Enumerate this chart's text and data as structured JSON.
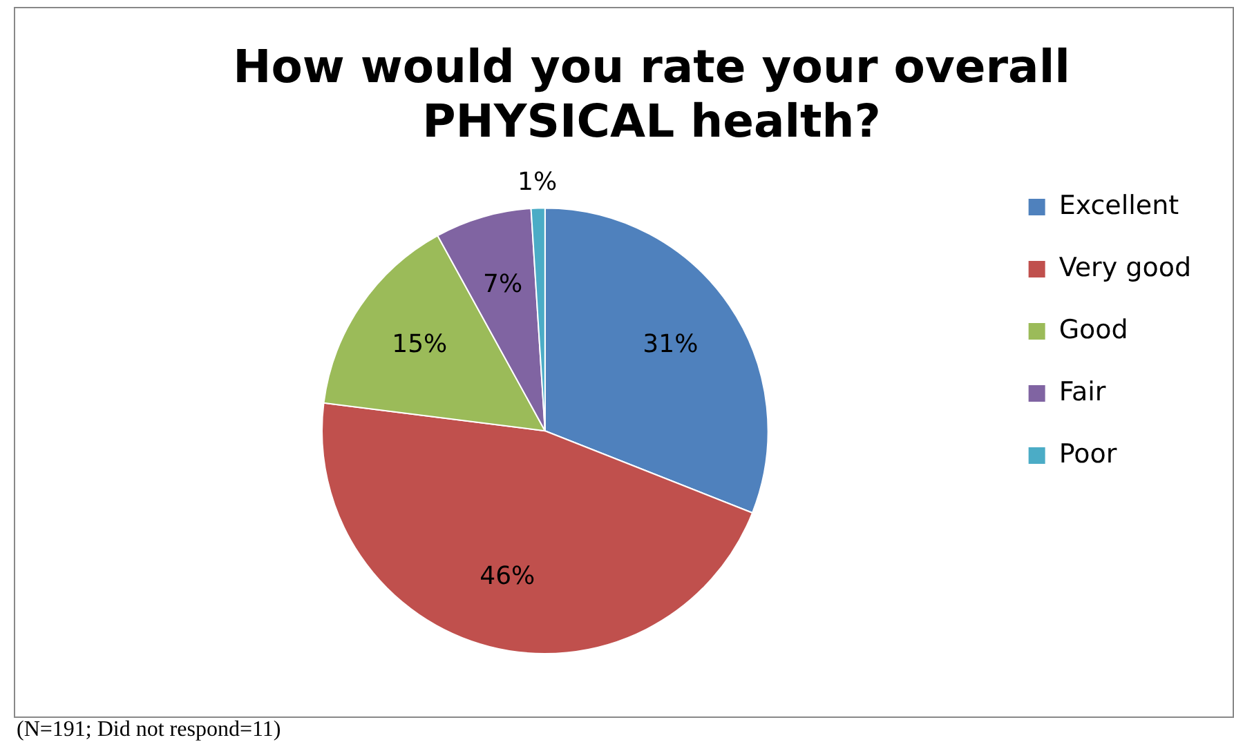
{
  "chart_data": {
    "type": "pie",
    "title": "How would you rate your overall PHYSICAL health?",
    "categories": [
      "Excellent",
      "Very good",
      "Good",
      "Fair",
      "Poor"
    ],
    "values": [
      31,
      46,
      15,
      7,
      1
    ],
    "colors": [
      "#4f81bd",
      "#c0504d",
      "#9bbb59",
      "#8064a2",
      "#4bacc6"
    ],
    "value_labels": [
      "31%",
      "46%",
      "15%",
      "7%",
      "1%"
    ],
    "legend": "right",
    "annotations": [
      "(N=191; Did not respond=11)"
    ]
  }
}
